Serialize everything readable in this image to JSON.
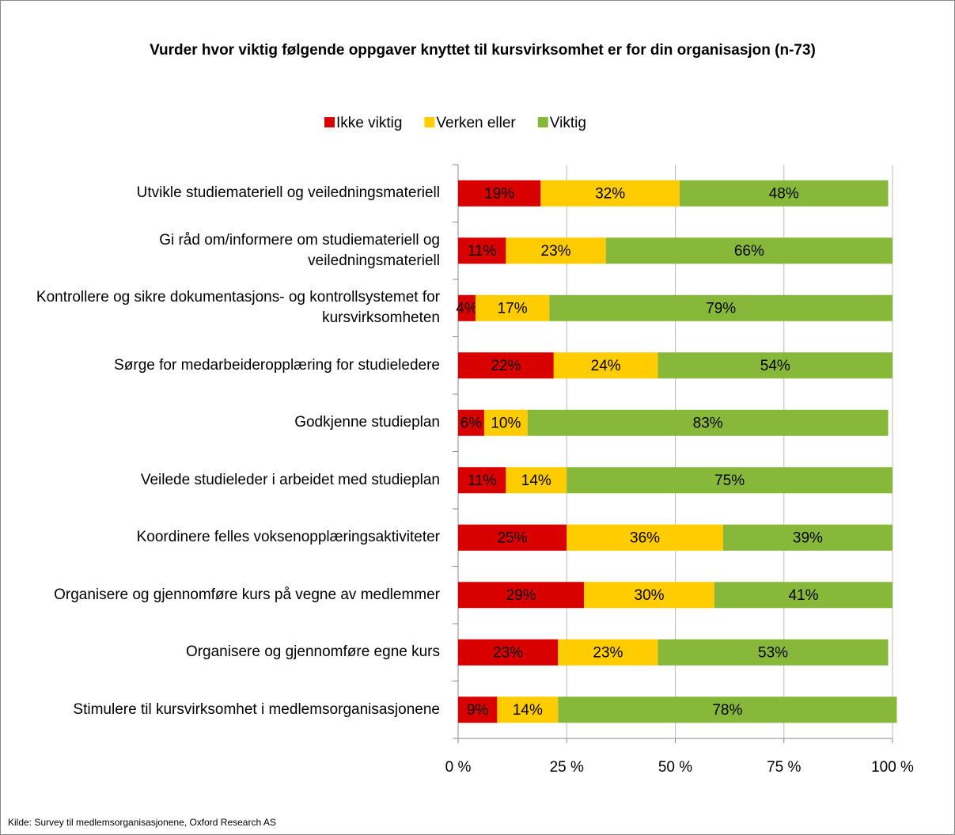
{
  "chart_data": {
    "type": "stacked-bar-horizontal",
    "title": "Vurder hvor viktig følgende oppgaver knyttet til kursvirksomhet er for din organisasjon (n-73)",
    "categories": [
      "Utvikle studiemateriell og veiledningsmateriell",
      "Gi råd om/informere om studiemateriell og veiledningsmateriell",
      "Kontrollere og sikre dokumentasjons- og kontrollsystemet for kursvirksomheten",
      "Sørge for medarbeideropplæring for studieledere",
      "Godkjenne studieplan",
      "Veilede studieleder i arbeidet med studieplan",
      "Koordinere felles voksenopplæringsaktiviteter",
      "Organisere og gjennomføre kurs på vegne av medlemmer",
      "Organisere og gjennomføre egne kurs",
      "Stimulere til kursvirksomhet i medlemsorganisasjonene"
    ],
    "series": [
      {
        "name": "Ikke viktig",
        "color": "#d90000",
        "values": [
          19,
          11,
          4,
          22,
          6,
          11,
          25,
          29,
          23,
          9
        ],
        "value_labels": [
          "19%",
          "11%",
          "4%",
          "22%",
          "6%",
          "11%",
          "25%",
          "29%",
          "23%",
          "9%"
        ]
      },
      {
        "name": "Verken eller",
        "color": "#ffcc00",
        "values": [
          32,
          23,
          17,
          24,
          10,
          14,
          36,
          30,
          23,
          14
        ],
        "value_labels": [
          "32%",
          "23%",
          "17%",
          "24%",
          "10%",
          "14%",
          "36%",
          "30%",
          "23%",
          "14%"
        ]
      },
      {
        "name": "Viktig",
        "color": "#88b83a",
        "values": [
          48,
          66,
          79,
          54,
          83,
          75,
          39,
          41,
          53,
          78
        ],
        "value_labels": [
          "48%",
          "66%",
          "79%",
          "54%",
          "83%",
          "75%",
          "39%",
          "41%",
          "53%",
          "78%"
        ]
      }
    ],
    "xlim": [
      0,
      100
    ],
    "xticks": [
      {
        "value": 0,
        "label": "0 %"
      },
      {
        "value": 25,
        "label": "25 %"
      },
      {
        "value": 50,
        "label": "50 %"
      },
      {
        "value": 75,
        "label": "75 %"
      },
      {
        "value": 100,
        "label": "100 %"
      }
    ],
    "grid": true,
    "legend": "top",
    "source": "Kilde: Survey til medlemsorganisasjonene, Oxford Research AS"
  }
}
